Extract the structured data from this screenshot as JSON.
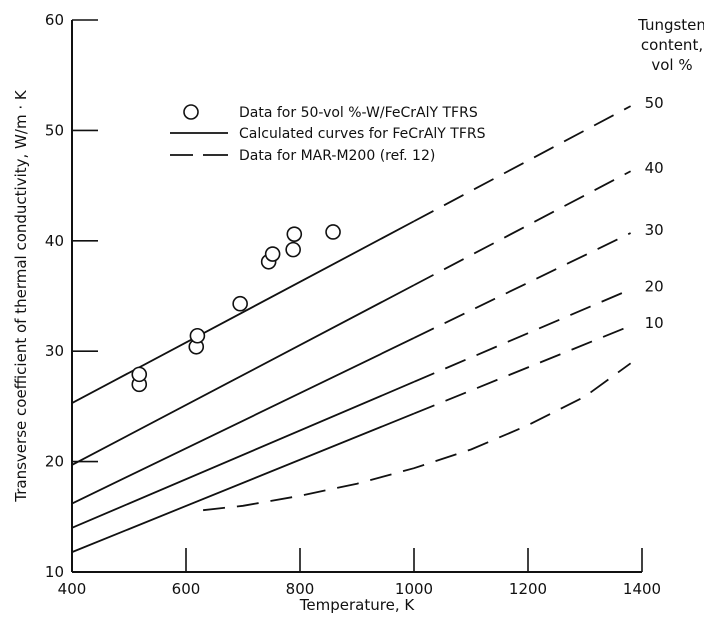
{
  "chart_data": {
    "type": "line",
    "xlabel": "Temperature, K",
    "ylabel": "Transverse coefficient of thermal conductivity, W/m · K",
    "xlim": [
      400,
      1400
    ],
    "ylim": [
      10,
      60
    ],
    "x_ticks": [
      400,
      600,
      800,
      1000,
      1200,
      1400
    ],
    "y_ticks": [
      10,
      20,
      30,
      40,
      50,
      60
    ],
    "grid": false,
    "legend_position": "top-center",
    "legend": {
      "markers_label": "Data for 50-vol %-W/FeCrAlY TFRS",
      "solid_label": "Calculated curves for FeCrAlY TFRS",
      "dashed_label": "Data for MAR-M200 (ref. 12)"
    },
    "right_title": [
      "Tungsten",
      "content,",
      "vol %"
    ],
    "markers": {
      "x": [
        518,
        518,
        618,
        620,
        695,
        745,
        752,
        788,
        790,
        858
      ],
      "y": [
        27.0,
        27.9,
        30.4,
        31.4,
        34.3,
        38.1,
        38.8,
        39.2,
        40.6,
        40.8
      ]
    },
    "series": [
      {
        "name": "50",
        "start": [
          400,
          25.3
        ],
        "solid_until": 1000,
        "end": [
          1380,
          52.2
        ]
      },
      {
        "name": "40",
        "start": [
          400,
          19.7
        ],
        "solid_until": 1000,
        "end": [
          1380,
          46.3
        ]
      },
      {
        "name": "30",
        "start": [
          400,
          16.2
        ],
        "solid_until": 1000,
        "end": [
          1380,
          40.7
        ]
      },
      {
        "name": "20",
        "start": [
          400,
          14.0
        ],
        "solid_until": 1000,
        "end": [
          1380,
          35.6
        ]
      },
      {
        "name": "10",
        "start": [
          400,
          11.8
        ],
        "solid_until": 1000,
        "end": [
          1380,
          32.3
        ]
      }
    ],
    "bottom_curve": {
      "x": [
        630,
        700,
        800,
        900,
        1000,
        1100,
        1200,
        1300,
        1380
      ],
      "y": [
        15.6,
        16.0,
        16.9,
        18.0,
        19.4,
        21.1,
        23.3,
        25.9,
        28.9
      ]
    },
    "right_labels": [
      "50",
      "40",
      "30",
      "20",
      "10"
    ]
  }
}
